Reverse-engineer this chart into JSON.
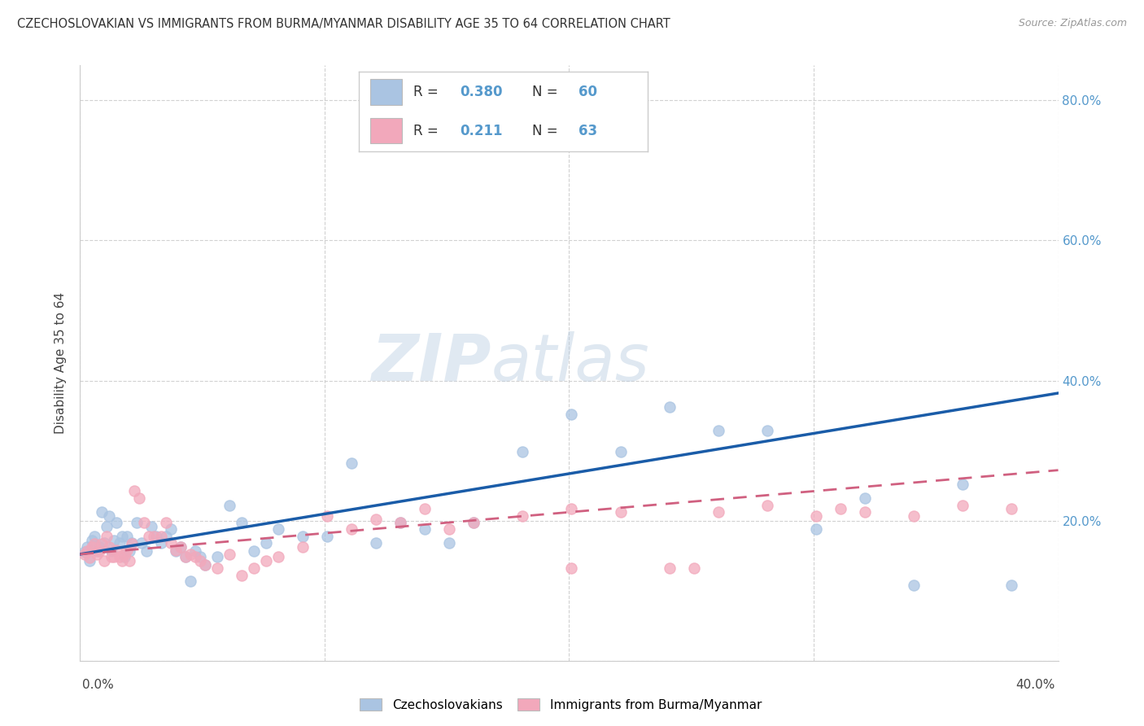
{
  "title": "CZECHOSLOVAKIAN VS IMMIGRANTS FROM BURMA/MYANMAR DISABILITY AGE 35 TO 64 CORRELATION CHART",
  "source": "Source: ZipAtlas.com",
  "ylabel": "Disability Age 35 to 64",
  "legend_blue_R": "0.380",
  "legend_blue_N": "60",
  "legend_pink_R": "0.211",
  "legend_pink_N": "63",
  "blue_color": "#aac4e2",
  "pink_color": "#f2a8bb",
  "line_blue_color": "#1a5ca8",
  "line_pink_color": "#d06080",
  "right_tick_color": "#5599cc",
  "grid_color": "#cccccc",
  "blue_points": [
    [
      0.002,
      0.155
    ],
    [
      0.003,
      0.162
    ],
    [
      0.004,
      0.143
    ],
    [
      0.005,
      0.172
    ],
    [
      0.006,
      0.178
    ],
    [
      0.007,
      0.157
    ],
    [
      0.008,
      0.162
    ],
    [
      0.009,
      0.212
    ],
    [
      0.01,
      0.168
    ],
    [
      0.011,
      0.192
    ],
    [
      0.012,
      0.207
    ],
    [
      0.013,
      0.157
    ],
    [
      0.014,
      0.172
    ],
    [
      0.015,
      0.197
    ],
    [
      0.016,
      0.168
    ],
    [
      0.017,
      0.178
    ],
    [
      0.018,
      0.148
    ],
    [
      0.019,
      0.178
    ],
    [
      0.02,
      0.157
    ],
    [
      0.021,
      0.168
    ],
    [
      0.023,
      0.197
    ],
    [
      0.025,
      0.168
    ],
    [
      0.027,
      0.157
    ],
    [
      0.029,
      0.192
    ],
    [
      0.031,
      0.178
    ],
    [
      0.033,
      0.168
    ],
    [
      0.035,
      0.178
    ],
    [
      0.037,
      0.188
    ],
    [
      0.039,
      0.157
    ],
    [
      0.041,
      0.162
    ],
    [
      0.043,
      0.148
    ],
    [
      0.045,
      0.113
    ],
    [
      0.047,
      0.157
    ],
    [
      0.049,
      0.148
    ],
    [
      0.051,
      0.137
    ],
    [
      0.056,
      0.148
    ],
    [
      0.061,
      0.222
    ],
    [
      0.066,
      0.197
    ],
    [
      0.071,
      0.157
    ],
    [
      0.076,
      0.168
    ],
    [
      0.081,
      0.188
    ],
    [
      0.091,
      0.178
    ],
    [
      0.101,
      0.178
    ],
    [
      0.111,
      0.282
    ],
    [
      0.121,
      0.168
    ],
    [
      0.131,
      0.197
    ],
    [
      0.141,
      0.188
    ],
    [
      0.151,
      0.168
    ],
    [
      0.161,
      0.197
    ],
    [
      0.181,
      0.298
    ],
    [
      0.201,
      0.352
    ],
    [
      0.221,
      0.298
    ],
    [
      0.241,
      0.362
    ],
    [
      0.261,
      0.328
    ],
    [
      0.281,
      0.328
    ],
    [
      0.301,
      0.188
    ],
    [
      0.321,
      0.232
    ],
    [
      0.341,
      0.108
    ],
    [
      0.361,
      0.252
    ],
    [
      0.381,
      0.108
    ]
  ],
  "pink_points": [
    [
      0.002,
      0.152
    ],
    [
      0.003,
      0.157
    ],
    [
      0.004,
      0.147
    ],
    [
      0.005,
      0.162
    ],
    [
      0.006,
      0.167
    ],
    [
      0.007,
      0.152
    ],
    [
      0.008,
      0.157
    ],
    [
      0.009,
      0.167
    ],
    [
      0.01,
      0.143
    ],
    [
      0.011,
      0.177
    ],
    [
      0.012,
      0.162
    ],
    [
      0.013,
      0.148
    ],
    [
      0.014,
      0.148
    ],
    [
      0.015,
      0.158
    ],
    [
      0.016,
      0.148
    ],
    [
      0.017,
      0.143
    ],
    [
      0.018,
      0.152
    ],
    [
      0.019,
      0.158
    ],
    [
      0.02,
      0.143
    ],
    [
      0.021,
      0.167
    ],
    [
      0.022,
      0.242
    ],
    [
      0.024,
      0.232
    ],
    [
      0.026,
      0.197
    ],
    [
      0.028,
      0.178
    ],
    [
      0.03,
      0.178
    ],
    [
      0.033,
      0.178
    ],
    [
      0.035,
      0.197
    ],
    [
      0.037,
      0.168
    ],
    [
      0.039,
      0.158
    ],
    [
      0.041,
      0.162
    ],
    [
      0.043,
      0.148
    ],
    [
      0.045,
      0.152
    ],
    [
      0.047,
      0.148
    ],
    [
      0.049,
      0.143
    ],
    [
      0.051,
      0.137
    ],
    [
      0.056,
      0.132
    ],
    [
      0.061,
      0.152
    ],
    [
      0.066,
      0.122
    ],
    [
      0.071,
      0.132
    ],
    [
      0.076,
      0.143
    ],
    [
      0.081,
      0.148
    ],
    [
      0.091,
      0.162
    ],
    [
      0.101,
      0.207
    ],
    [
      0.111,
      0.188
    ],
    [
      0.121,
      0.202
    ],
    [
      0.131,
      0.197
    ],
    [
      0.141,
      0.217
    ],
    [
      0.151,
      0.188
    ],
    [
      0.161,
      0.197
    ],
    [
      0.181,
      0.207
    ],
    [
      0.201,
      0.132
    ],
    [
      0.221,
      0.212
    ],
    [
      0.241,
      0.132
    ],
    [
      0.261,
      0.212
    ],
    [
      0.281,
      0.222
    ],
    [
      0.301,
      0.207
    ],
    [
      0.321,
      0.212
    ],
    [
      0.341,
      0.207
    ],
    [
      0.361,
      0.222
    ],
    [
      0.381,
      0.217
    ],
    [
      0.251,
      0.132
    ],
    [
      0.311,
      0.217
    ],
    [
      0.201,
      0.217
    ]
  ],
  "xlim": [
    0.0,
    0.4
  ],
  "ylim": [
    0.0,
    0.85
  ],
  "blue_line": [
    [
      0.0,
      0.152
    ],
    [
      0.4,
      0.382
    ]
  ],
  "pink_line": [
    [
      0.0,
      0.152
    ],
    [
      0.4,
      0.272
    ]
  ]
}
